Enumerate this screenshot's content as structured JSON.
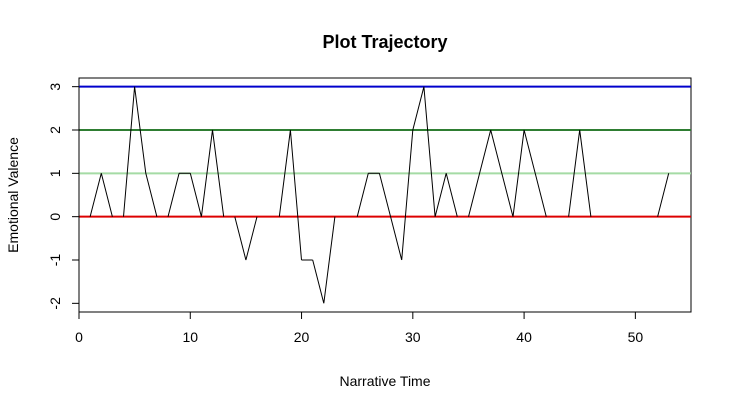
{
  "chart_data": {
    "type": "line",
    "title": "Plot Trajectory",
    "xlabel": "Narrative Time",
    "ylabel": "Emotional Valence",
    "xlim": [
      0,
      55
    ],
    "ylim": [
      -2.2,
      3.2
    ],
    "xticks": [
      0,
      10,
      20,
      30,
      40,
      50
    ],
    "yticks": [
      -2,
      -1,
      0,
      1,
      2,
      3
    ],
    "hlines": [
      {
        "y": 3,
        "color": "#0000cc"
      },
      {
        "y": 2,
        "color": "#2e7d32"
      },
      {
        "y": 1,
        "color": "#a5dba5"
      },
      {
        "y": 0,
        "color": "#dd0000"
      }
    ],
    "series": [
      {
        "color": "#000000",
        "x": [
          1,
          2,
          3,
          4,
          5,
          6,
          7,
          8,
          9,
          10,
          11,
          12,
          13,
          14,
          15,
          16,
          17,
          18,
          19,
          20,
          21,
          22,
          23,
          24,
          25,
          26,
          27,
          28,
          29,
          30,
          31,
          32,
          33,
          34,
          35,
          36,
          37,
          38,
          39,
          40,
          41,
          42,
          43,
          44,
          45,
          46,
          47,
          48,
          49,
          50,
          51,
          52,
          53
        ],
        "y": [
          0,
          1,
          0,
          0,
          3,
          1,
          0,
          0,
          1,
          1,
          0,
          2,
          0,
          0,
          -1,
          0,
          0,
          0,
          2,
          -1,
          -1,
          -2,
          0,
          0,
          0,
          1,
          1,
          0,
          -1,
          2,
          3,
          0,
          1,
          0,
          0,
          1,
          2,
          1,
          0,
          2,
          1,
          0,
          0,
          0,
          2,
          0,
          0,
          0,
          0,
          0,
          0,
          0,
          1
        ]
      }
    ]
  }
}
